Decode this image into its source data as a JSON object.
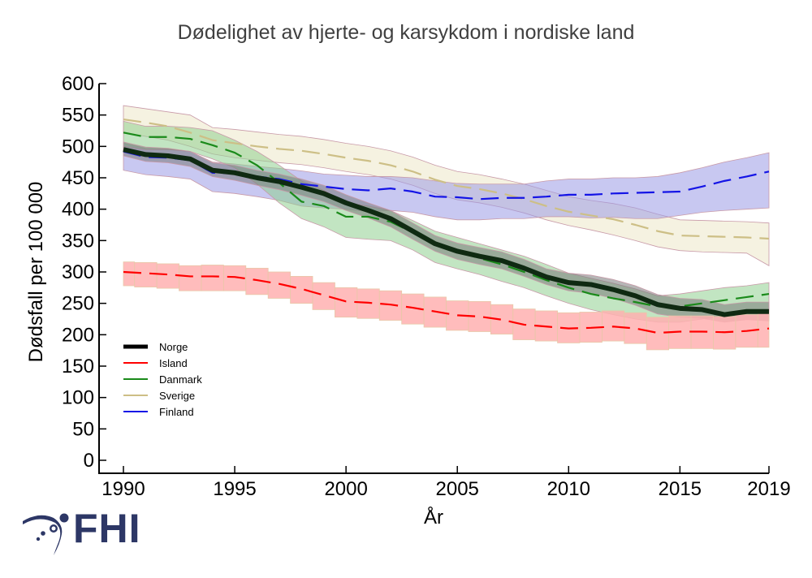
{
  "chart_data": {
    "type": "line",
    "title": "Dødelighet av hjerte- og karsykdom i nordiske land",
    "xlabel": "År",
    "ylabel": "Dødsfall per 100 000",
    "xlim": [
      1990,
      2019
    ],
    "ylim": [
      0,
      600
    ],
    "x_ticks": [
      1990,
      1995,
      2000,
      2005,
      2010,
      2015,
      2019
    ],
    "y_ticks": [
      0,
      50,
      100,
      150,
      200,
      250,
      300,
      350,
      400,
      450,
      500,
      550,
      600
    ],
    "grid": false,
    "legend_position": "lower-left",
    "x": [
      1990,
      1991,
      1992,
      1993,
      1994,
      1995,
      1996,
      1997,
      1998,
      1999,
      2000,
      2001,
      2002,
      2003,
      2004,
      2005,
      2006,
      2007,
      2008,
      2009,
      2010,
      2011,
      2012,
      2013,
      2014,
      2015,
      2016,
      2017,
      2018,
      2019
    ],
    "series": [
      {
        "name": "Sverige",
        "color": "#cdbf86",
        "band_color": "#ece8c8",
        "dash": true,
        "band_style": "smooth",
        "values": [
          543,
          538,
          532,
          522,
          510,
          505,
          500,
          496,
          493,
          488,
          482,
          477,
          470,
          460,
          447,
          437,
          432,
          425,
          416,
          405,
          396,
          390,
          384,
          375,
          365,
          358,
          357,
          356,
          355,
          353
        ],
        "lower": [
          522,
          516,
          510,
          500,
          488,
          482,
          478,
          474,
          471,
          466,
          460,
          455,
          448,
          438,
          425,
          415,
          410,
          403,
          394,
          383,
          374,
          367,
          359,
          350,
          340,
          334,
          332,
          331,
          330,
          310
        ],
        "upper": [
          565,
          560,
          555,
          550,
          530,
          527,
          523,
          519,
          516,
          511,
          505,
          500,
          493,
          483,
          470,
          460,
          455,
          448,
          440,
          430,
          420,
          414,
          409,
          402,
          392,
          383,
          382,
          381,
          380,
          378
        ]
      },
      {
        "name": "Finland",
        "color": "#1414e6",
        "band_color": "#9a9ae6",
        "dash": true,
        "band_style": "smooth",
        "values": [
          492,
          483,
          482,
          478,
          458,
          457,
          452,
          448,
          440,
          436,
          432,
          430,
          433,
          428,
          420,
          419,
          416,
          418,
          418,
          420,
          423,
          423,
          425,
          426,
          427,
          428,
          436,
          445,
          452,
          460
        ],
        "lower": [
          462,
          455,
          452,
          448,
          428,
          425,
          420,
          414,
          405,
          402,
          400,
          396,
          398,
          395,
          388,
          383,
          383,
          385,
          385,
          388,
          388,
          386,
          387,
          385,
          385,
          390,
          395,
          398,
          400,
          402
        ],
        "upper": [
          505,
          497,
          496,
          492,
          475,
          472,
          468,
          465,
          461,
          456,
          454,
          452,
          452,
          450,
          445,
          441,
          440,
          440,
          440,
          445,
          448,
          448,
          450,
          450,
          452,
          458,
          466,
          475,
          482,
          490
        ]
      },
      {
        "name": "Danmark",
        "color": "#1a8a1a",
        "band_color": "#8fcf8f",
        "dash": true,
        "band_style": "smooth",
        "values": [
          522,
          515,
          515,
          512,
          502,
          490,
          470,
          442,
          412,
          405,
          388,
          388,
          380,
          363,
          345,
          332,
          322,
          312,
          300,
          287,
          275,
          265,
          258,
          252,
          245,
          245,
          250,
          255,
          260,
          265
        ],
        "lower": [
          500,
          495,
          495,
          492,
          480,
          466,
          440,
          410,
          385,
          372,
          355,
          352,
          350,
          335,
          315,
          305,
          296,
          285,
          275,
          262,
          250,
          240,
          232,
          225,
          220,
          220,
          225,
          230,
          235,
          238
        ],
        "upper": [
          540,
          532,
          532,
          530,
          525,
          510,
          492,
          470,
          445,
          430,
          410,
          405,
          398,
          382,
          365,
          355,
          345,
          335,
          325,
          312,
          298,
          290,
          282,
          273,
          262,
          265,
          270,
          275,
          278,
          283
        ]
      },
      {
        "name": "Norge",
        "color": "#000000",
        "band_color": "#7a7a7a",
        "dash": false,
        "band_style": "smooth",
        "values": [
          495,
          487,
          485,
          480,
          462,
          458,
          450,
          444,
          435,
          425,
          410,
          398,
          385,
          365,
          345,
          333,
          325,
          318,
          306,
          292,
          283,
          280,
          272,
          262,
          248,
          242,
          240,
          232,
          237,
          237
        ],
        "lower": [
          485,
          476,
          474,
          468,
          452,
          446,
          438,
          431,
          422,
          412,
          398,
          386,
          372,
          352,
          333,
          320,
          312,
          305,
          293,
          280,
          270,
          266,
          258,
          247,
          233,
          228,
          226,
          220,
          224,
          222
        ],
        "upper": [
          507,
          499,
          497,
          492,
          474,
          470,
          462,
          456,
          448,
          438,
          423,
          410,
          398,
          378,
          358,
          346,
          339,
          332,
          320,
          305,
          298,
          295,
          288,
          278,
          264,
          258,
          256,
          248,
          252,
          252
        ]
      },
      {
        "name": "Island",
        "color": "#ff0000",
        "band_color": "#ffb0b0",
        "dash": true,
        "band_style": "step",
        "values": [
          300,
          298,
          296,
          293,
          293,
          292,
          287,
          281,
          273,
          263,
          253,
          251,
          248,
          243,
          237,
          231,
          229,
          224,
          216,
          213,
          210,
          211,
          213,
          210,
          203,
          205,
          205,
          204,
          206,
          210
        ],
        "lower": [
          278,
          276,
          274,
          270,
          270,
          270,
          264,
          258,
          250,
          240,
          228,
          226,
          223,
          217,
          212,
          207,
          205,
          201,
          192,
          190,
          187,
          188,
          190,
          186,
          176,
          178,
          178,
          177,
          180,
          180
        ],
        "upper": [
          316,
          315,
          313,
          310,
          311,
          310,
          306,
          300,
          293,
          283,
          275,
          273,
          270,
          265,
          260,
          254,
          253,
          248,
          241,
          238,
          235,
          236,
          238,
          235,
          228,
          230,
          230,
          229,
          232,
          235
        ]
      }
    ],
    "legend": [
      {
        "name": "Norge",
        "color": "#000000"
      },
      {
        "name": "Island",
        "color": "#ff0000"
      },
      {
        "name": "Danmark",
        "color": "#1a8a1a"
      },
      {
        "name": "Sverige",
        "color": "#cdbf86"
      },
      {
        "name": "Finland",
        "color": "#1414e6"
      }
    ]
  },
  "logo": {
    "text": "FHI",
    "color": "#2d3766"
  }
}
